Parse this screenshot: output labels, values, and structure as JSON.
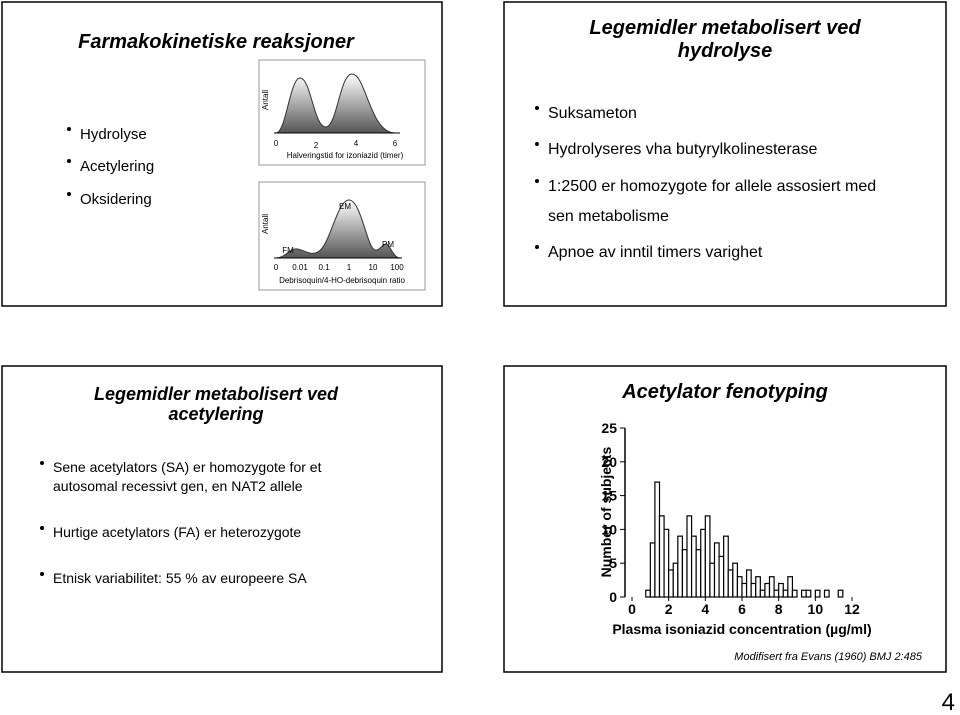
{
  "slides": [
    {
      "title": [
        "Farmakokinetiske  reaksjoner"
      ],
      "bullets": [
        [
          "Hydrolyse"
        ],
        [
          "Acetylering"
        ],
        [
          "Oksidering"
        ]
      ],
      "figures": [
        {
          "y_label": "Antall",
          "x_label": "Halveringstid for izoniazid (timer)",
          "x_ticks": [
            "0",
            "2",
            "4",
            "6"
          ]
        },
        {
          "y_label": "Antall",
          "x_label": "Debrisoquin/4-HO-debrisoquin ratio",
          "x_ticks": [
            "0",
            "0.01",
            "0.1",
            "1",
            "10",
            "100"
          ],
          "labels": [
            "EM",
            "FM",
            "PM"
          ]
        }
      ]
    },
    {
      "title": [
        "Legemidler metabolisert ved",
        "hydrolyse"
      ],
      "bullets": [
        [
          "Suksameton"
        ],
        [
          "Hydrolyseres vha butyrylkolinesterase"
        ],
        [
          "1:2500 er homozygote for allele assosiert med",
          "sen metabolisme"
        ],
        [
          "Apnoe av inntil timers varighet"
        ]
      ]
    },
    {
      "title": [
        "Legemidler metabolisert ved",
        "acetylering"
      ],
      "bullets": [
        [
          "Sene acetylators (SA) er homozygote for et",
          "autosomal recessivt gen, en NAT2 allele"
        ],
        [
          "Hurtige acetylators (FA) er heterozygote"
        ],
        [
          "Etnisk variabilitet: 55 % av europeere SA"
        ]
      ]
    },
    {
      "title": [
        "Acetylator fenotyping"
      ],
      "chart": {
        "type": "histogram",
        "bins": [
          0.5,
          0.75,
          1.0,
          1.25,
          1.5,
          1.75,
          2.0,
          2.25,
          2.5,
          2.75,
          3.0,
          3.25,
          3.5,
          3.75,
          4.0,
          4.25,
          4.5,
          4.75,
          5.0,
          5.25,
          5.5,
          5.75,
          6.0,
          6.25,
          6.5,
          6.75,
          7.0,
          7.25,
          7.5,
          7.75,
          8.0,
          8.25,
          8.5,
          8.75,
          9.0,
          9.25,
          9.5,
          9.75,
          10.0,
          10.25,
          10.5,
          10.75,
          11.0,
          11.25,
          11.5,
          11.75
        ],
        "counts": [
          0,
          1,
          8,
          17,
          12,
          10,
          4,
          5,
          9,
          7,
          12,
          9,
          7,
          10,
          12,
          5,
          8,
          6,
          9,
          4,
          5,
          3,
          2,
          4,
          2,
          3,
          1,
          2,
          3,
          1,
          2,
          1,
          3,
          1,
          0,
          1,
          1,
          0,
          1,
          0,
          1,
          0,
          0,
          1,
          0
        ],
        "xticks": [
          0,
          2,
          4,
          6,
          8,
          10,
          12
        ],
        "yticks": [
          0,
          5,
          10,
          15,
          20,
          25
        ],
        "x_label": "Plasma isoniazid concentration (µg/ml)",
        "y_label": "Number of subjects"
      },
      "caption": "Modifisert fra Evans (1960) BMJ 2:485"
    }
  ],
  "page_number": "4"
}
